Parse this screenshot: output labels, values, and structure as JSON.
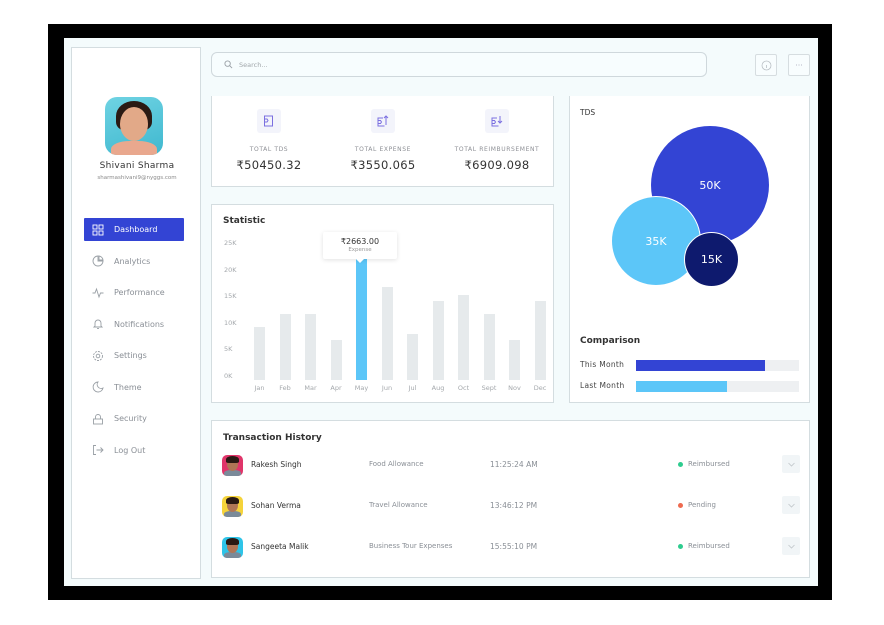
{
  "sidebar": {
    "user": {
      "name": "Shivani Sharma",
      "email": "sharmashivani9@nyggs.com"
    },
    "items": [
      {
        "label": "Dashboard",
        "icon": "grid-icon",
        "active": true
      },
      {
        "label": "Analytics",
        "icon": "pie-chart-icon"
      },
      {
        "label": "Performance",
        "icon": "pulse-icon"
      },
      {
        "label": "Notifications",
        "icon": "bell-icon"
      },
      {
        "label": "Settings",
        "icon": "gear-icon"
      },
      {
        "label": "Theme",
        "icon": "moon-icon"
      },
      {
        "label": "Security",
        "icon": "lock-icon"
      },
      {
        "label": "Log Out",
        "icon": "logout-icon"
      }
    ]
  },
  "header": {
    "search_placeholder": "Search...",
    "info_icon": "info-icon",
    "more_icon": "more-dots-icon",
    "more_label": "···"
  },
  "stats": [
    {
      "label": "TOTAL TDS",
      "value": "₹50450.32",
      "icon": "document-icon"
    },
    {
      "label": "TOTAL EXPENSE",
      "value": "₹3550.065",
      "icon": "document-upload-icon"
    },
    {
      "label": "TOTAL REIMBURSEMENT",
      "value": "₹6909.098",
      "icon": "document-download-icon"
    }
  ],
  "statistic": {
    "title": "Statistic",
    "tooltip": {
      "value": "₹2663.00",
      "label": "Expense"
    }
  },
  "chart_data": [
    {
      "type": "bar",
      "title": "Statistic",
      "categories": [
        "Jan",
        "Feb",
        "Mar",
        "Apr",
        "May",
        "Jun",
        "Jul",
        "Aug",
        "Oct",
        "Sept",
        "Nov",
        "Dec"
      ],
      "values": [
        10000,
        12500,
        12500,
        7500,
        23500,
        17500,
        8700,
        15000,
        16000,
        12500,
        7500,
        15000
      ],
      "highlighted": "May",
      "yticks": [
        "0K",
        "5K",
        "10K",
        "15K",
        "20K",
        "25K"
      ],
      "ylim": [
        0,
        25000
      ],
      "xlabel": "",
      "ylabel": "",
      "colors": {
        "default": "#e6eaec",
        "highlight": "#5cc6f8"
      }
    },
    {
      "type": "bubble",
      "title": "TDS",
      "labels": [
        "50K",
        "35K",
        "15K"
      ],
      "values": [
        50000,
        35000,
        15000
      ],
      "colors": [
        "#3344d4",
        "#5cc6f8",
        "#0e1a6e"
      ]
    },
    {
      "type": "bar",
      "orientation": "horizontal",
      "title": "Comparison",
      "categories": [
        "This Month",
        "Last Month"
      ],
      "values": [
        79,
        56
      ],
      "ylim": [
        0,
        100
      ],
      "colors": [
        "#3344d4",
        "#5cc6f8"
      ]
    }
  ],
  "tds": {
    "title": "TDS",
    "bubbles": [
      {
        "label": "50K",
        "color": "#3344d4"
      },
      {
        "label": "35K",
        "color": "#5cc6f8"
      },
      {
        "label": "15K",
        "color": "#0e1a6e"
      }
    ]
  },
  "comparison": {
    "title": "Comparison",
    "rows": [
      {
        "label": "This Month",
        "percent": 79,
        "color": "#3344d4"
      },
      {
        "label": "Last Month",
        "percent": 56,
        "color": "#5cc6f8"
      }
    ]
  },
  "transactions": {
    "title": "Transaction History",
    "rows": [
      {
        "name": "Rakesh Singh",
        "category": "Food Allowance",
        "time": "11:25:24 AM",
        "status": "Reimbursed",
        "status_color": "#2ecc8f",
        "avatar_bg": "#e0356a"
      },
      {
        "name": "Sohan Verma",
        "category": "Travel Allowance",
        "time": "13:46:12 PM",
        "status": "Pending",
        "status_color": "#ee6a4f",
        "avatar_bg": "#f5d33a"
      },
      {
        "name": "Sangeeta Malik",
        "category": "Business Tour Expenses",
        "time": "15:55:10 PM",
        "status": "Reimbursed",
        "status_color": "#2ecc8f",
        "avatar_bg": "#2ec4e8"
      }
    ]
  }
}
